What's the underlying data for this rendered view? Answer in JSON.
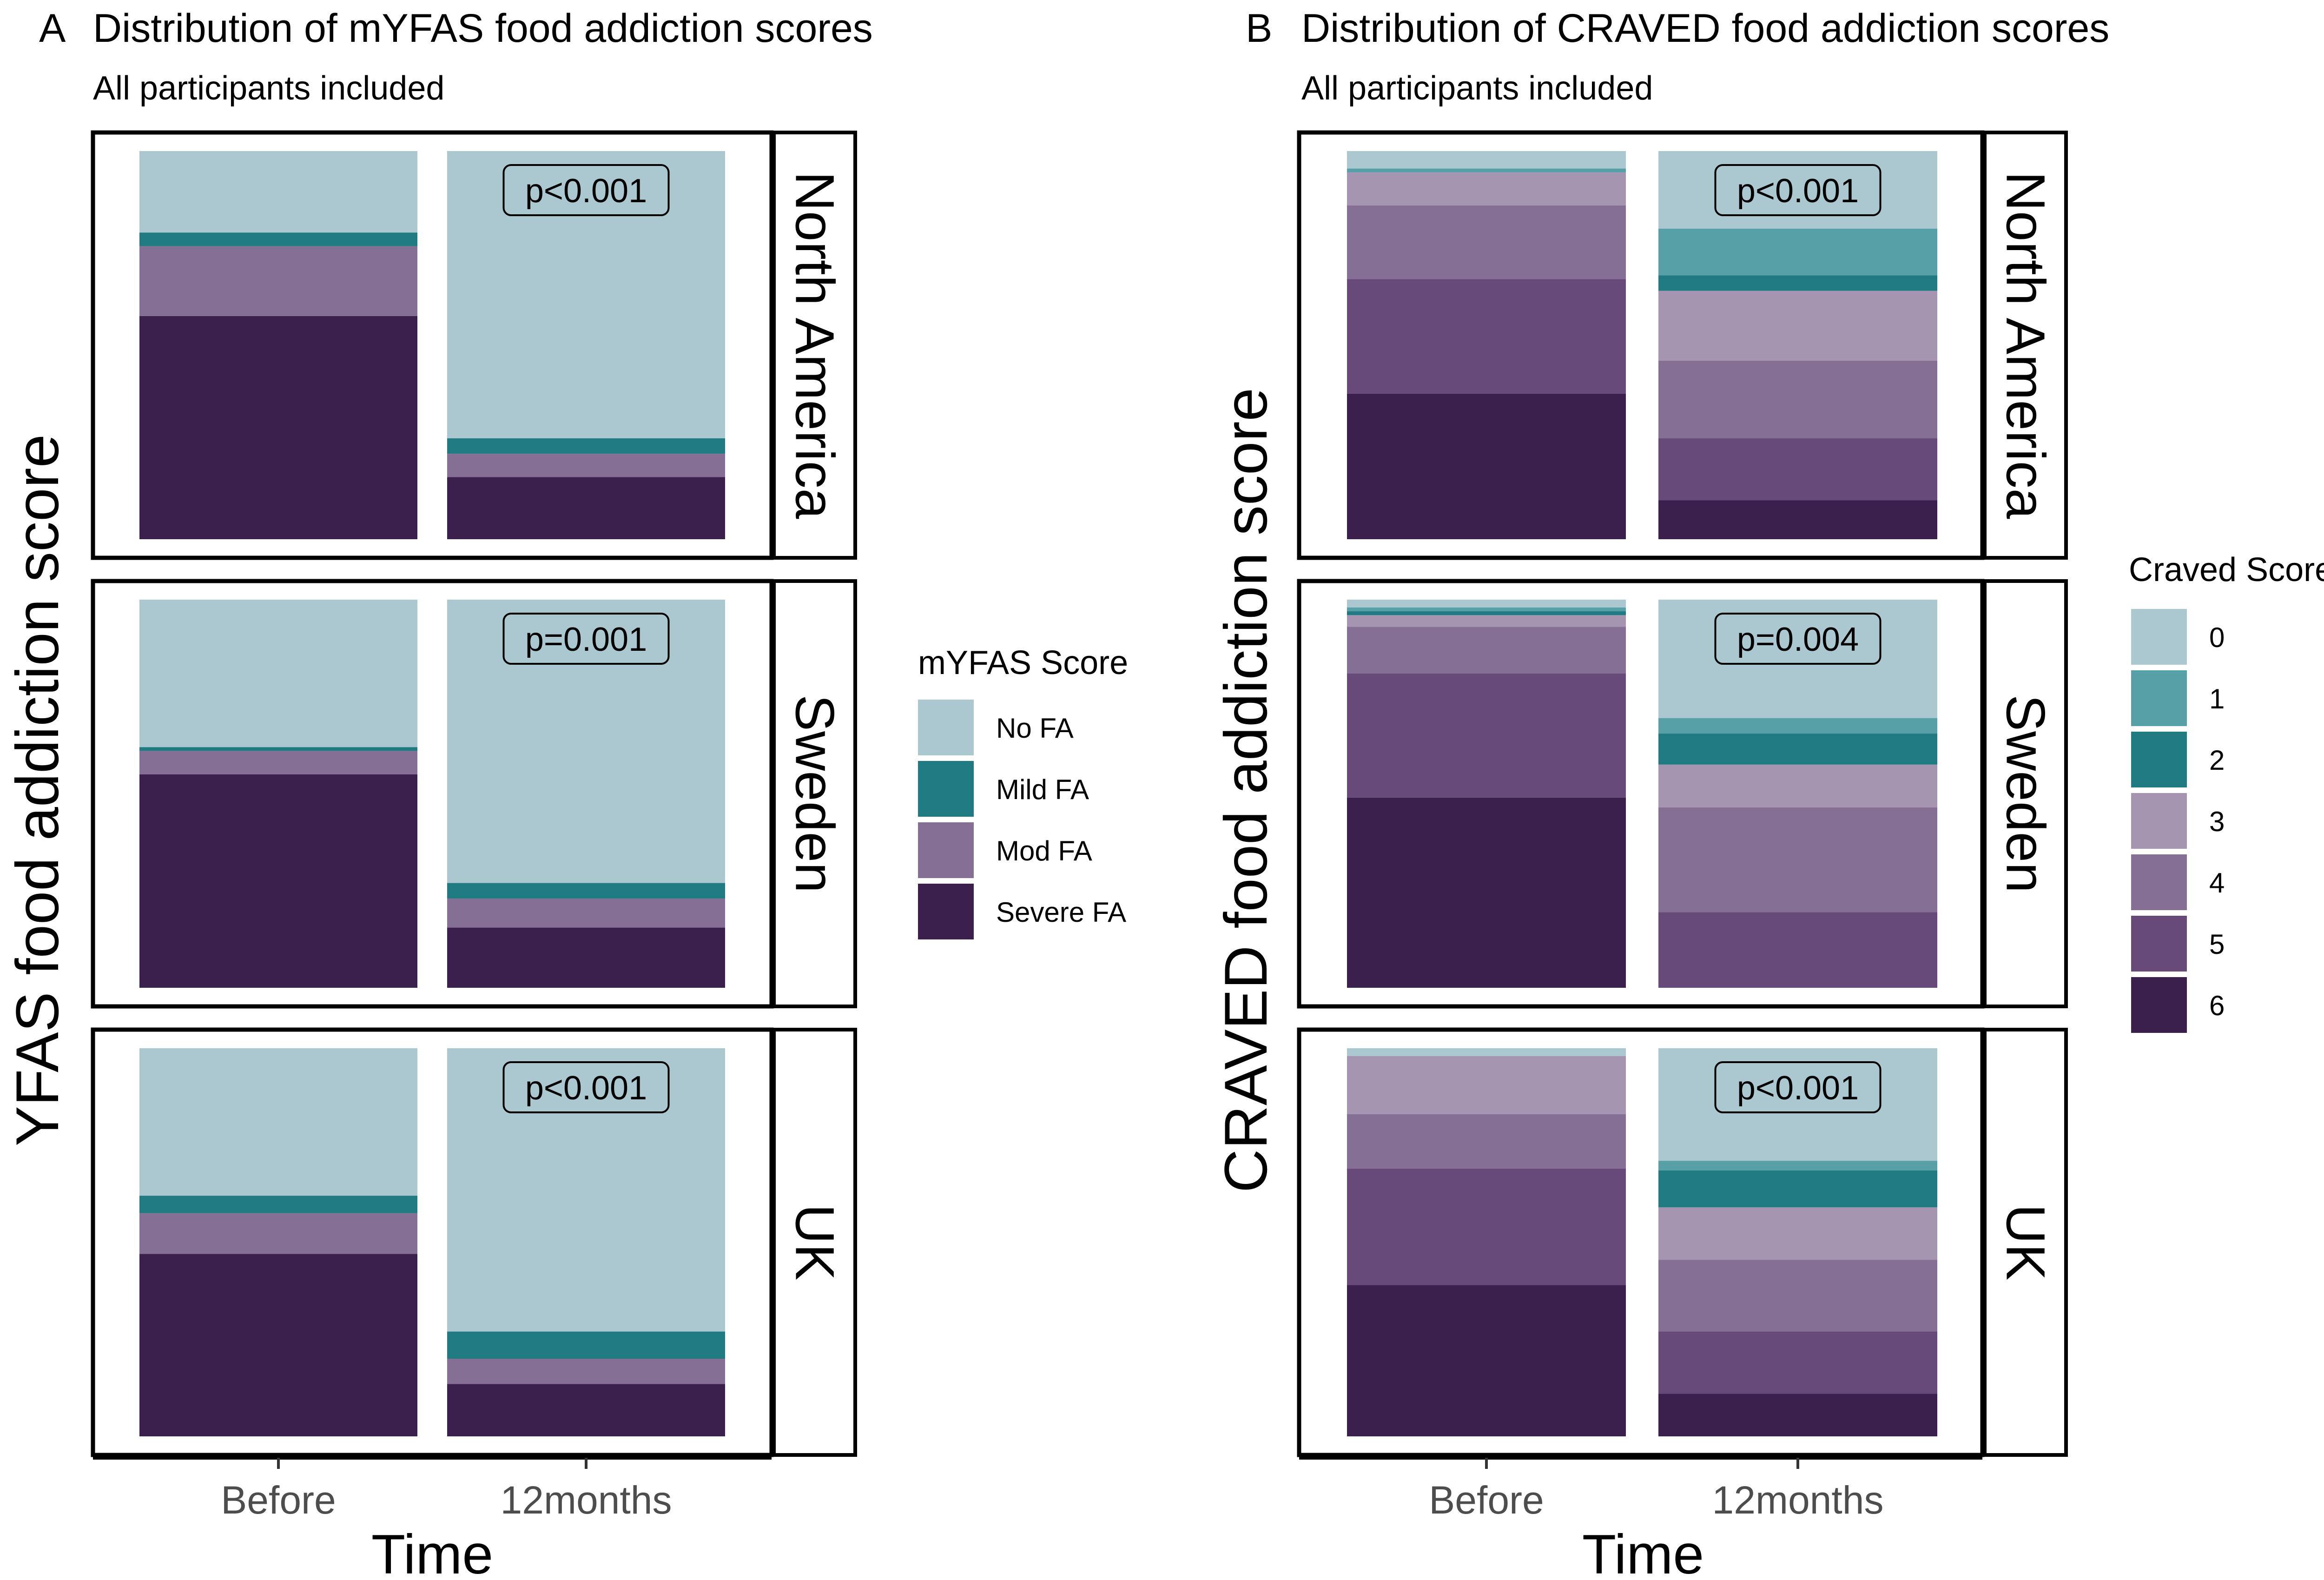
{
  "colors": {
    "mYFAS": {
      "No FA": "#abc8d0",
      "Mild FA": "#1f7a82",
      "Mod FA": "#856f95",
      "Severe FA": "#3b1f4d"
    },
    "craved": {
      "0": "#abc8d0",
      "1": "#57a0a8",
      "2": "#1f7a82",
      "3": "#a595b0",
      "4": "#856f95",
      "5": "#674a7a",
      "6": "#3b1f4d"
    }
  },
  "chart_data": [
    {
      "type": "bar",
      "stacked": true,
      "normalized": true,
      "panel_tag": "A",
      "title": "Distribution of mYFAS food addiction scores",
      "subtitle": "All participants included",
      "xlabel": "Time",
      "ylabel": "YFAS food addiction score",
      "categories": [
        "Before",
        "12months"
      ],
      "legend_title": "mYFAS Score",
      "legend_position": "right",
      "series_names": [
        "No FA",
        "Mild FA",
        "Mod FA",
        "Severe FA"
      ],
      "color_key": "mYFAS",
      "ylim": [
        0,
        1
      ],
      "facets": [
        {
          "label": "North America",
          "p_value": "p<0.001",
          "bars": [
            {
              "category": "Before",
              "values": {
                "No FA": 0.21,
                "Mild FA": 0.035,
                "Mod FA": 0.18,
                "Severe FA": 0.575
              }
            },
            {
              "category": "12months",
              "values": {
                "No FA": 0.74,
                "Mild FA": 0.04,
                "Mod FA": 0.06,
                "Severe FA": 0.16
              }
            }
          ]
        },
        {
          "label": "Sweden",
          "p_value": "p=0.001",
          "bars": [
            {
              "category": "Before",
              "values": {
                "No FA": 0.38,
                "Mild FA": 0.01,
                "Mod FA": 0.06,
                "Severe FA": 0.55
              }
            },
            {
              "category": "12months",
              "values": {
                "No FA": 0.73,
                "Mild FA": 0.04,
                "Mod FA": 0.075,
                "Severe FA": 0.155
              }
            }
          ]
        },
        {
          "label": "UK",
          "p_value": "p<0.001",
          "bars": [
            {
              "category": "Before",
              "values": {
                "No FA": 0.38,
                "Mild FA": 0.045,
                "Mod FA": 0.105,
                "Severe FA": 0.47
              }
            },
            {
              "category": "12months",
              "values": {
                "No FA": 0.73,
                "Mild FA": 0.07,
                "Mod FA": 0.065,
                "Severe FA": 0.135
              }
            }
          ]
        }
      ]
    },
    {
      "type": "bar",
      "stacked": true,
      "normalized": true,
      "panel_tag": "B",
      "title": "Distribution of CRAVED food addiction scores",
      "subtitle": "All participants included",
      "xlabel": "Time",
      "ylabel": "CRAVED food addiction score",
      "categories": [
        "Before",
        "12months"
      ],
      "legend_title": "Craved Score",
      "legend_position": "right",
      "series_names": [
        "0",
        "1",
        "2",
        "3",
        "4",
        "5",
        "6"
      ],
      "color_key": "craved",
      "ylim": [
        0,
        1
      ],
      "facets": [
        {
          "label": "North America",
          "p_value": "p<0.001",
          "bars": [
            {
              "category": "Before",
              "values": {
                "0": 0.045,
                "1": 0.01,
                "2": 0.0,
                "3": 0.085,
                "4": 0.19,
                "5": 0.295,
                "6": 0.375
              }
            },
            {
              "category": "12months",
              "values": {
                "0": 0.2,
                "1": 0.12,
                "2": 0.04,
                "3": 0.18,
                "4": 0.2,
                "5": 0.16,
                "6": 0.1
              }
            }
          ]
        },
        {
          "label": "Sweden",
          "p_value": "p=0.004",
          "bars": [
            {
              "category": "Before",
              "values": {
                "0": 0.02,
                "1": 0.01,
                "2": 0.01,
                "3": 0.03,
                "4": 0.12,
                "5": 0.32,
                "6": 0.49
              }
            },
            {
              "category": "12months",
              "values": {
                "0": 0.305,
                "1": 0.04,
                "2": 0.08,
                "3": 0.11,
                "4": 0.27,
                "5": 0.195,
                "6": 0.0
              }
            }
          ]
        },
        {
          "label": "UK",
          "p_value": "p<0.001",
          "bars": [
            {
              "category": "Before",
              "values": {
                "0": 0.02,
                "1": 0.0,
                "2": 0.0,
                "3": 0.15,
                "4": 0.14,
                "5": 0.3,
                "6": 0.39
              }
            },
            {
              "category": "12months",
              "values": {
                "0": 0.29,
                "1": 0.025,
                "2": 0.095,
                "3": 0.135,
                "4": 0.185,
                "5": 0.16,
                "6": 0.11
              }
            }
          ]
        }
      ]
    }
  ]
}
